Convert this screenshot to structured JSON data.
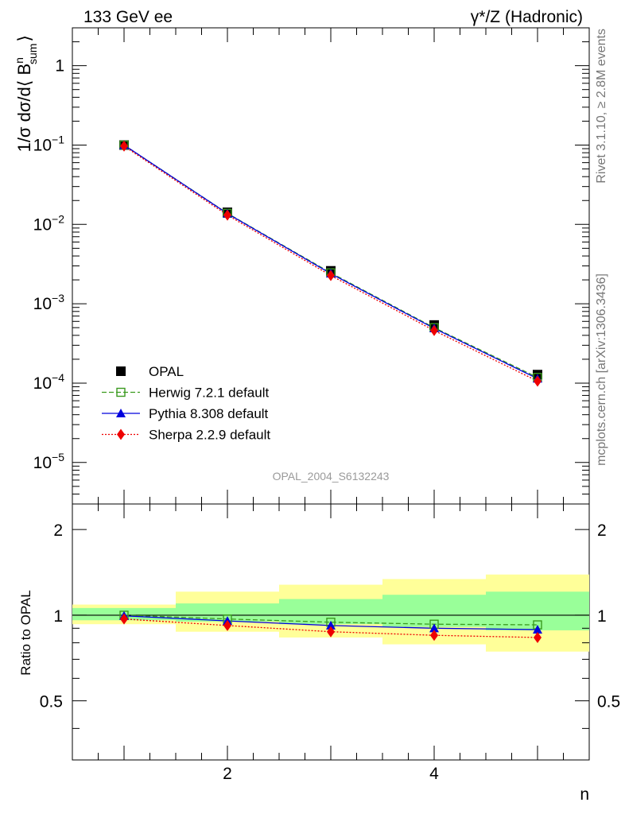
{
  "header": {
    "left_title": "133 GeV ee",
    "right_title_prefix": "γ*/Z",
    "right_title_suffix": "(Hadronic)"
  },
  "side_labels": {
    "rivet": "Rivet 3.1.10, ≥ 2.8M events",
    "mcplots": "mcplots.cern.ch [arXiv:1306.3436]"
  },
  "watermark": "OPAL_2004_S6132243",
  "upper_ylabel": {
    "prefix": "1/σ dσ/d⟨ B",
    "sup": "n",
    "sub": "sum",
    "suffix": "⟩"
  },
  "lower_ylabel": "Ratio to OPAL",
  "xlabel": "n",
  "upper_ticks": [
    {
      "value": 1,
      "base": "1",
      "exp": ""
    },
    {
      "value": 0.1,
      "base": "10",
      "exp": "−1"
    },
    {
      "value": 0.01,
      "base": "10",
      "exp": "−2"
    },
    {
      "value": 0.001,
      "base": "10",
      "exp": "−3"
    },
    {
      "value": 0.0001,
      "base": "10",
      "exp": "−4"
    },
    {
      "value": 1e-05,
      "base": "10",
      "exp": "−5"
    }
  ],
  "lower_tick_labels": [
    "0.5",
    "1",
    "2"
  ],
  "x_tick_labels": [
    "2",
    "4"
  ],
  "legend": [
    {
      "name": "OPAL",
      "color": "#000000",
      "marker": "square-filled",
      "line": "none"
    },
    {
      "name": "Herwig 7.2.1 default",
      "color": "#3a9a1e",
      "marker": "square-open",
      "line": "dashed"
    },
    {
      "name": "Pythia 8.308 default",
      "color": "#0000dd",
      "marker": "triangle",
      "line": "solid"
    },
    {
      "name": "Sherpa 2.2.9 default",
      "color": "#ee0000",
      "marker": "diamond",
      "line": "dotted"
    }
  ],
  "chart_data": [
    {
      "type": "line",
      "panel": "main",
      "x": [
        1,
        2,
        3,
        4,
        5
      ],
      "xlim": [
        0.5,
        5.5
      ],
      "ylim": [
        3e-06,
        3
      ],
      "yscale": "log",
      "xlabel": "n",
      "legend_position": "lower-left",
      "series": [
        {
          "name": "OPAL",
          "values": [
            0.1,
            0.0142,
            0.0026,
            0.00054,
            0.000128
          ]
        },
        {
          "name": "Herwig 7.2.1 default",
          "values": [
            0.1,
            0.0138,
            0.00245,
            0.0005,
            0.000118
          ]
        },
        {
          "name": "Pythia 8.308 default",
          "values": [
            0.1,
            0.0137,
            0.0024,
            0.00049,
            0.000114
          ]
        },
        {
          "name": "Sherpa 2.2.9 default",
          "values": [
            0.097,
            0.0131,
            0.00227,
            0.00046,
            0.000106
          ]
        }
      ]
    },
    {
      "type": "line",
      "panel": "ratio",
      "x": [
        1,
        2,
        3,
        4,
        5
      ],
      "xlim": [
        0.5,
        5.5
      ],
      "ylim": [
        0.31,
        2.46
      ],
      "yscale": "log",
      "ylabel": "Ratio to OPAL",
      "xlabel": "n",
      "reference_line": 1,
      "bands": {
        "bin_edges": [
          0.5,
          1.5,
          2.5,
          3.5,
          4.5,
          5.5
        ],
        "inner_low": [
          0.96,
          0.95,
          0.93,
          0.91,
          0.885
        ],
        "inner_high": [
          1.06,
          1.1,
          1.14,
          1.18,
          1.21
        ],
        "outer_low": [
          0.93,
          0.875,
          0.835,
          0.79,
          0.745
        ],
        "outer_high": [
          1.09,
          1.21,
          1.28,
          1.34,
          1.39
        ],
        "inner_color": "#99ff99",
        "outer_color": "#ffff99"
      },
      "series": [
        {
          "name": "Herwig 7.2.1 default",
          "values": [
            1.0,
            0.97,
            0.945,
            0.93,
            0.925
          ]
        },
        {
          "name": "Pythia 8.308 default",
          "values": [
            0.995,
            0.955,
            0.92,
            0.9,
            0.89
          ]
        },
        {
          "name": "Sherpa 2.2.9 default",
          "values": [
            0.97,
            0.92,
            0.875,
            0.85,
            0.835
          ]
        }
      ]
    }
  ]
}
